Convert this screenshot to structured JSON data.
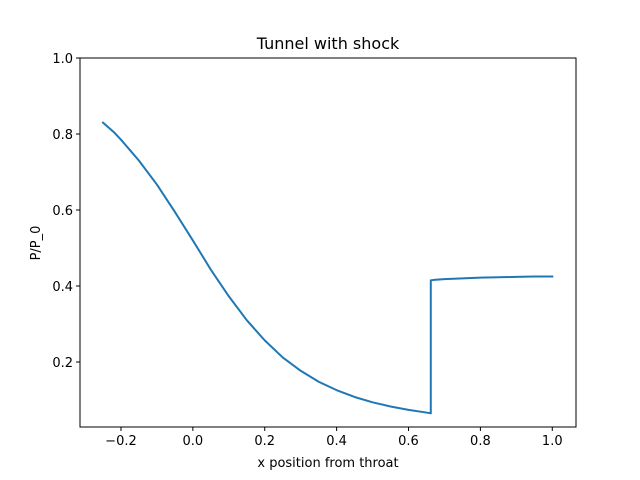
{
  "chart_data": {
    "type": "line",
    "title": "Tunnel with shock",
    "xlabel": "x position from throat",
    "ylabel": "P/P_0",
    "xlim": [
      -0.314,
      1.066
    ],
    "ylim": [
      0.029,
      1.0
    ],
    "x_ticks": [
      -0.2,
      0.0,
      0.2,
      0.4,
      0.6,
      0.8,
      1.0
    ],
    "x_tick_labels": [
      "−0.2",
      "0.0",
      "0.2",
      "0.4",
      "0.6",
      "0.8",
      "1.0"
    ],
    "y_ticks": [
      0.2,
      0.4,
      0.6,
      0.8,
      1.0
    ],
    "y_tick_labels": [
      "0.2",
      "0.4",
      "0.6",
      "0.8",
      "1.0"
    ],
    "grid": false,
    "series": [
      {
        "color": "#1f77b4",
        "x": [
          -0.25,
          -0.22,
          -0.2,
          -0.15,
          -0.1,
          -0.05,
          0.0,
          0.05,
          0.1,
          0.15,
          0.2,
          0.25,
          0.3,
          0.35,
          0.4,
          0.45,
          0.5,
          0.55,
          0.6,
          0.65,
          0.662,
          0.662,
          0.67,
          0.7,
          0.75,
          0.8,
          0.85,
          0.9,
          0.95,
          1.0
        ],
        "y": [
          0.83,
          0.805,
          0.785,
          0.73,
          0.667,
          0.595,
          0.52,
          0.443,
          0.373,
          0.31,
          0.257,
          0.212,
          0.177,
          0.148,
          0.126,
          0.108,
          0.094,
          0.083,
          0.074,
          0.067,
          0.065,
          0.415,
          0.416,
          0.418,
          0.42,
          0.422,
          0.423,
          0.424,
          0.425,
          0.425
        ]
      }
    ]
  }
}
